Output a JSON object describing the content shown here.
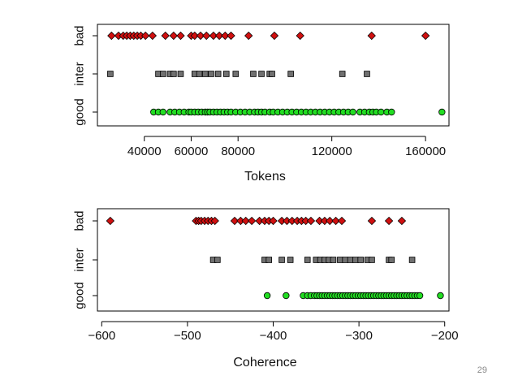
{
  "page_number": "29",
  "colors": {
    "bad": "#d01010",
    "inter": "#707070",
    "good": "#22dd22",
    "edge": "#000000"
  },
  "chart_data": [
    {
      "type": "scatter",
      "xlabel": "Tokens",
      "categories": [
        "good",
        "inter",
        "bad"
      ],
      "xlim": [
        20000,
        170000
      ],
      "xticks": [
        40000,
        60000,
        80000,
        120000,
        160000
      ],
      "tick_labels": [
        "40000",
        "60000",
        "80000",
        "120000",
        "160000"
      ],
      "series": [
        {
          "name": "bad",
          "marker": "diamond",
          "values": [
            26000,
            29000,
            31000,
            32500,
            34000,
            35500,
            37000,
            38500,
            40500,
            43500,
            49000,
            52500,
            55500,
            60000,
            61500,
            64000,
            66500,
            69500,
            72000,
            74500,
            77000,
            84500,
            95500,
            106500,
            137000,
            160000
          ]
        },
        {
          "name": "inter",
          "marker": "square",
          "values": [
            25500,
            46000,
            48000,
            51000,
            52500,
            55500,
            61500,
            63500,
            66000,
            68500,
            71500,
            75000,
            79000,
            86500,
            90000,
            93500,
            94500,
            102500,
            124500,
            135000
          ]
        },
        {
          "name": "good",
          "marker": "circle",
          "values": [
            44000,
            46000,
            48000,
            51000,
            53000,
            55000,
            57000,
            59000,
            60000,
            61500,
            63000,
            64500,
            66000,
            67000,
            68000,
            69500,
            71000,
            72500,
            74000,
            75500,
            77000,
            79000,
            81000,
            83000,
            85000,
            87000,
            88500,
            90000,
            91500,
            93500,
            95000,
            97000,
            99000,
            101000,
            103000,
            105000,
            107000,
            109000,
            111000,
            113000,
            115000,
            117000,
            119000,
            121000,
            123000,
            125000,
            127000,
            129000,
            132000,
            134000,
            136000,
            137500,
            139000,
            141000,
            143500,
            145500,
            167000
          ]
        }
      ]
    },
    {
      "type": "scatter",
      "xlabel": "Coherence",
      "categories": [
        "good",
        "inter",
        "bad"
      ],
      "xlim": [
        -605,
        -195
      ],
      "xticks": [
        -600,
        -500,
        -400,
        -300,
        -200
      ],
      "tick_labels": [
        "−600",
        "−500",
        "−400",
        "−300",
        "−200"
      ],
      "series": [
        {
          "name": "bad",
          "marker": "diamond",
          "values": [
            -590,
            -490,
            -487,
            -484,
            -480,
            -476,
            -472,
            -468,
            -445,
            -438,
            -432,
            -425,
            -416,
            -410,
            -405,
            -400,
            -390,
            -384,
            -378,
            -372,
            -367,
            -362,
            -356,
            -346,
            -340,
            -334,
            -327,
            -320,
            -285,
            -265,
            -250
          ]
        },
        {
          "name": "inter",
          "marker": "square",
          "values": [
            -470,
            -465,
            -410,
            -405,
            -390,
            -380,
            -360,
            -350,
            -345,
            -340,
            -335,
            -330,
            -322,
            -316,
            -310,
            -304,
            -298,
            -290,
            -285,
            -265,
            -262,
            -238
          ]
        },
        {
          "name": "good",
          "marker": "circle",
          "values": [
            -407,
            -385,
            -365,
            -360,
            -356,
            -352,
            -349,
            -346,
            -343,
            -340,
            -337,
            -334,
            -331,
            -328,
            -325,
            -322,
            -319,
            -316,
            -313,
            -310,
            -307,
            -304,
            -301,
            -298,
            -295,
            -292,
            -289,
            -286,
            -283,
            -280,
            -277,
            -274,
            -271,
            -268,
            -265,
            -262,
            -259,
            -256,
            -253,
            -250,
            -247,
            -244,
            -241,
            -238,
            -235,
            -232,
            -229,
            -205
          ]
        }
      ]
    }
  ]
}
